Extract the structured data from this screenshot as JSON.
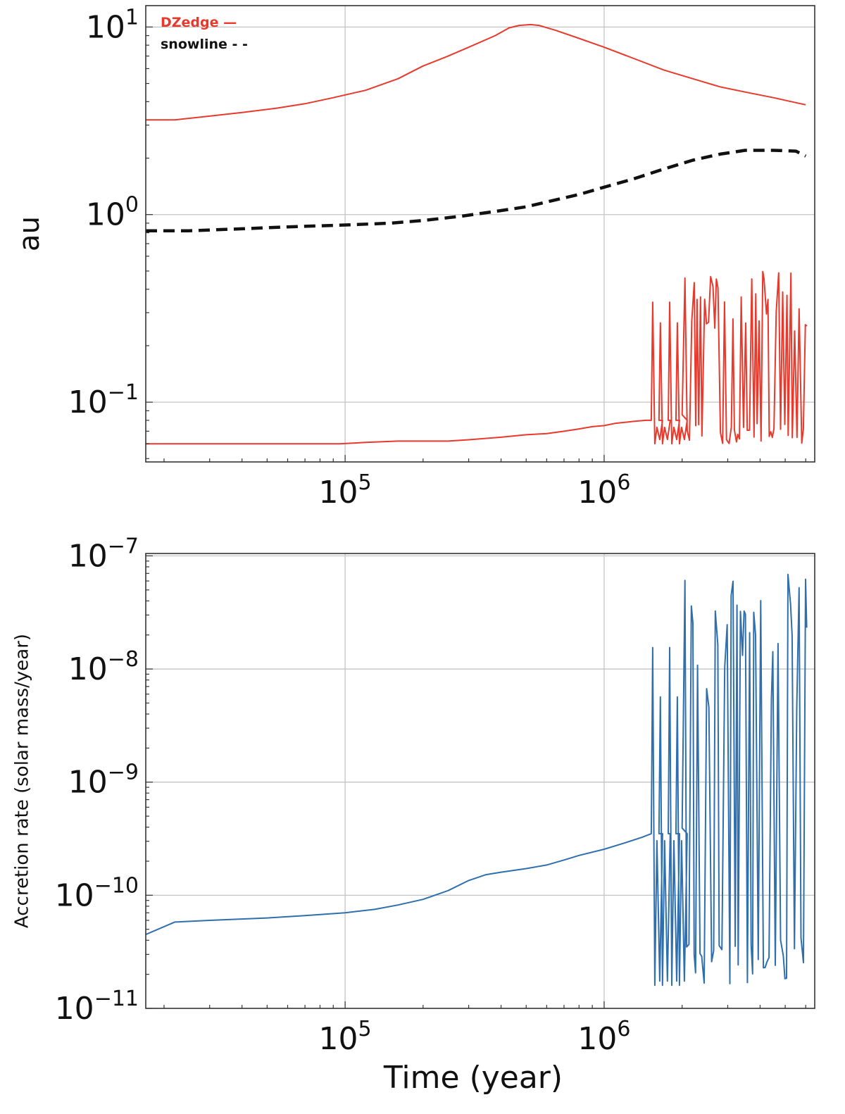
{
  "chart_data": [
    {
      "type": "line",
      "panel": "top",
      "x_scale": "log",
      "y_scale": "log",
      "xlim": [
        17000,
        6500000
      ],
      "ylim": [
        0.048,
        13
      ],
      "xticks": [
        {
          "value": 100000,
          "base": "10",
          "exp": "5"
        },
        {
          "value": 1000000,
          "base": "10",
          "exp": "6"
        }
      ],
      "yticks": [
        {
          "value": 0.1,
          "base": "10",
          "exp": "−1"
        },
        {
          "value": 1,
          "base": "10",
          "exp": "0"
        },
        {
          "value": 10,
          "base": "10",
          "exp": "1"
        }
      ],
      "xlabel": "",
      "ylabel": "au",
      "grid": true,
      "legend_placement": "top-left",
      "legend": [
        {
          "label": "DZedge",
          "marker": "—",
          "color": "#e8392c"
        },
        {
          "label": "snowline",
          "marker": "- -",
          "color": "#111111"
        }
      ],
      "series": [
        {
          "name": "DZedge",
          "color": "#e8392c",
          "style": "solid",
          "x": [
            17000,
            22000,
            30000,
            40000,
            55000,
            70000,
            90000,
            120000,
            160000,
            200000,
            250000,
            300000,
            380000,
            430000,
            470000,
            520000,
            560000,
            650000,
            800000,
            1000000,
            1300000,
            1700000,
            2200000,
            2800000,
            3500000,
            4500000,
            5500000,
            6000000
          ],
          "y": [
            3.2,
            3.2,
            3.35,
            3.5,
            3.7,
            3.9,
            4.2,
            4.6,
            5.3,
            6.2,
            7.0,
            7.8,
            9.0,
            9.9,
            10.2,
            10.3,
            10.2,
            9.6,
            8.7,
            7.8,
            6.8,
            5.9,
            5.3,
            4.8,
            4.5,
            4.2,
            3.95,
            3.85
          ]
        },
        {
          "name": "snowline",
          "color": "#111111",
          "style": "dashed",
          "x": [
            17000,
            25000,
            40000,
            60000,
            100000,
            150000,
            200000,
            280000,
            380000,
            500000,
            620000,
            800000,
            1000000,
            1300000,
            1700000,
            2200000,
            2800000,
            3500000,
            4500000,
            5500000,
            6000000
          ],
          "y": [
            0.82,
            0.82,
            0.84,
            0.86,
            0.88,
            0.9,
            0.93,
            0.98,
            1.04,
            1.1,
            1.18,
            1.28,
            1.4,
            1.55,
            1.75,
            1.95,
            2.1,
            2.2,
            2.2,
            2.18,
            2.05
          ]
        },
        {
          "name": "",
          "color": "#e8392c",
          "style": "solid",
          "x": [
            17000,
            50000,
            95000,
            120000,
            160000,
            250000,
            300000,
            400000,
            500000,
            600000,
            700000,
            800000,
            900000,
            1000000,
            1100000,
            1200000,
            1300000,
            1450000,
            1520000
          ],
          "y": [
            0.06,
            0.06,
            0.06,
            0.061,
            0.062,
            0.062,
            0.063,
            0.065,
            0.067,
            0.068,
            0.07,
            0.072,
            0.074,
            0.075,
            0.077,
            0.078,
            0.079,
            0.08,
            0.08
          ],
          "burst_region_x": [
            1520000,
            6000000
          ],
          "burst_range_y": [
            0.06,
            0.5
          ]
        }
      ]
    },
    {
      "type": "line",
      "panel": "bottom",
      "x_scale": "log",
      "y_scale": "log",
      "xlim": [
        17000,
        6500000
      ],
      "ylim": [
        1e-11,
        1.05e-07
      ],
      "xticks": [
        {
          "value": 100000,
          "base": "10",
          "exp": "5"
        },
        {
          "value": 1000000,
          "base": "10",
          "exp": "6"
        }
      ],
      "yticks": [
        {
          "value": 1e-11,
          "base": "10",
          "exp": "−11"
        },
        {
          "value": 1e-10,
          "base": "10",
          "exp": "−10"
        },
        {
          "value": 1e-09,
          "base": "10",
          "exp": "−9"
        },
        {
          "value": 1e-08,
          "base": "10",
          "exp": "−8"
        },
        {
          "value": 1e-07,
          "base": "10",
          "exp": "−7"
        }
      ],
      "xlabel": "Time (year)",
      "ylabel": "Accretion rate (solar mass/year)",
      "grid": true,
      "series": [
        {
          "name": "",
          "color": "#2f6fad",
          "style": "solid",
          "x": [
            17000,
            22000,
            30000,
            50000,
            70000,
            100000,
            130000,
            160000,
            200000,
            250000,
            300000,
            350000,
            400000,
            500000,
            600000,
            700000,
            800000,
            1000000,
            1200000,
            1400000,
            1520000
          ],
          "y": [
            4.5e-11,
            5.8e-11,
            6e-11,
            6.3e-11,
            6.6e-11,
            7e-11,
            7.5e-11,
            8.2e-11,
            9.2e-11,
            1.1e-10,
            1.35e-10,
            1.52e-10,
            1.6e-10,
            1.72e-10,
            1.85e-10,
            2.05e-10,
            2.25e-10,
            2.55e-10,
            2.9e-10,
            3.25e-10,
            3.5e-10
          ],
          "burst_region_x": [
            1520000,
            6000000
          ],
          "burst_range_y": [
            1.6e-11,
            7e-08
          ]
        }
      ]
    }
  ]
}
